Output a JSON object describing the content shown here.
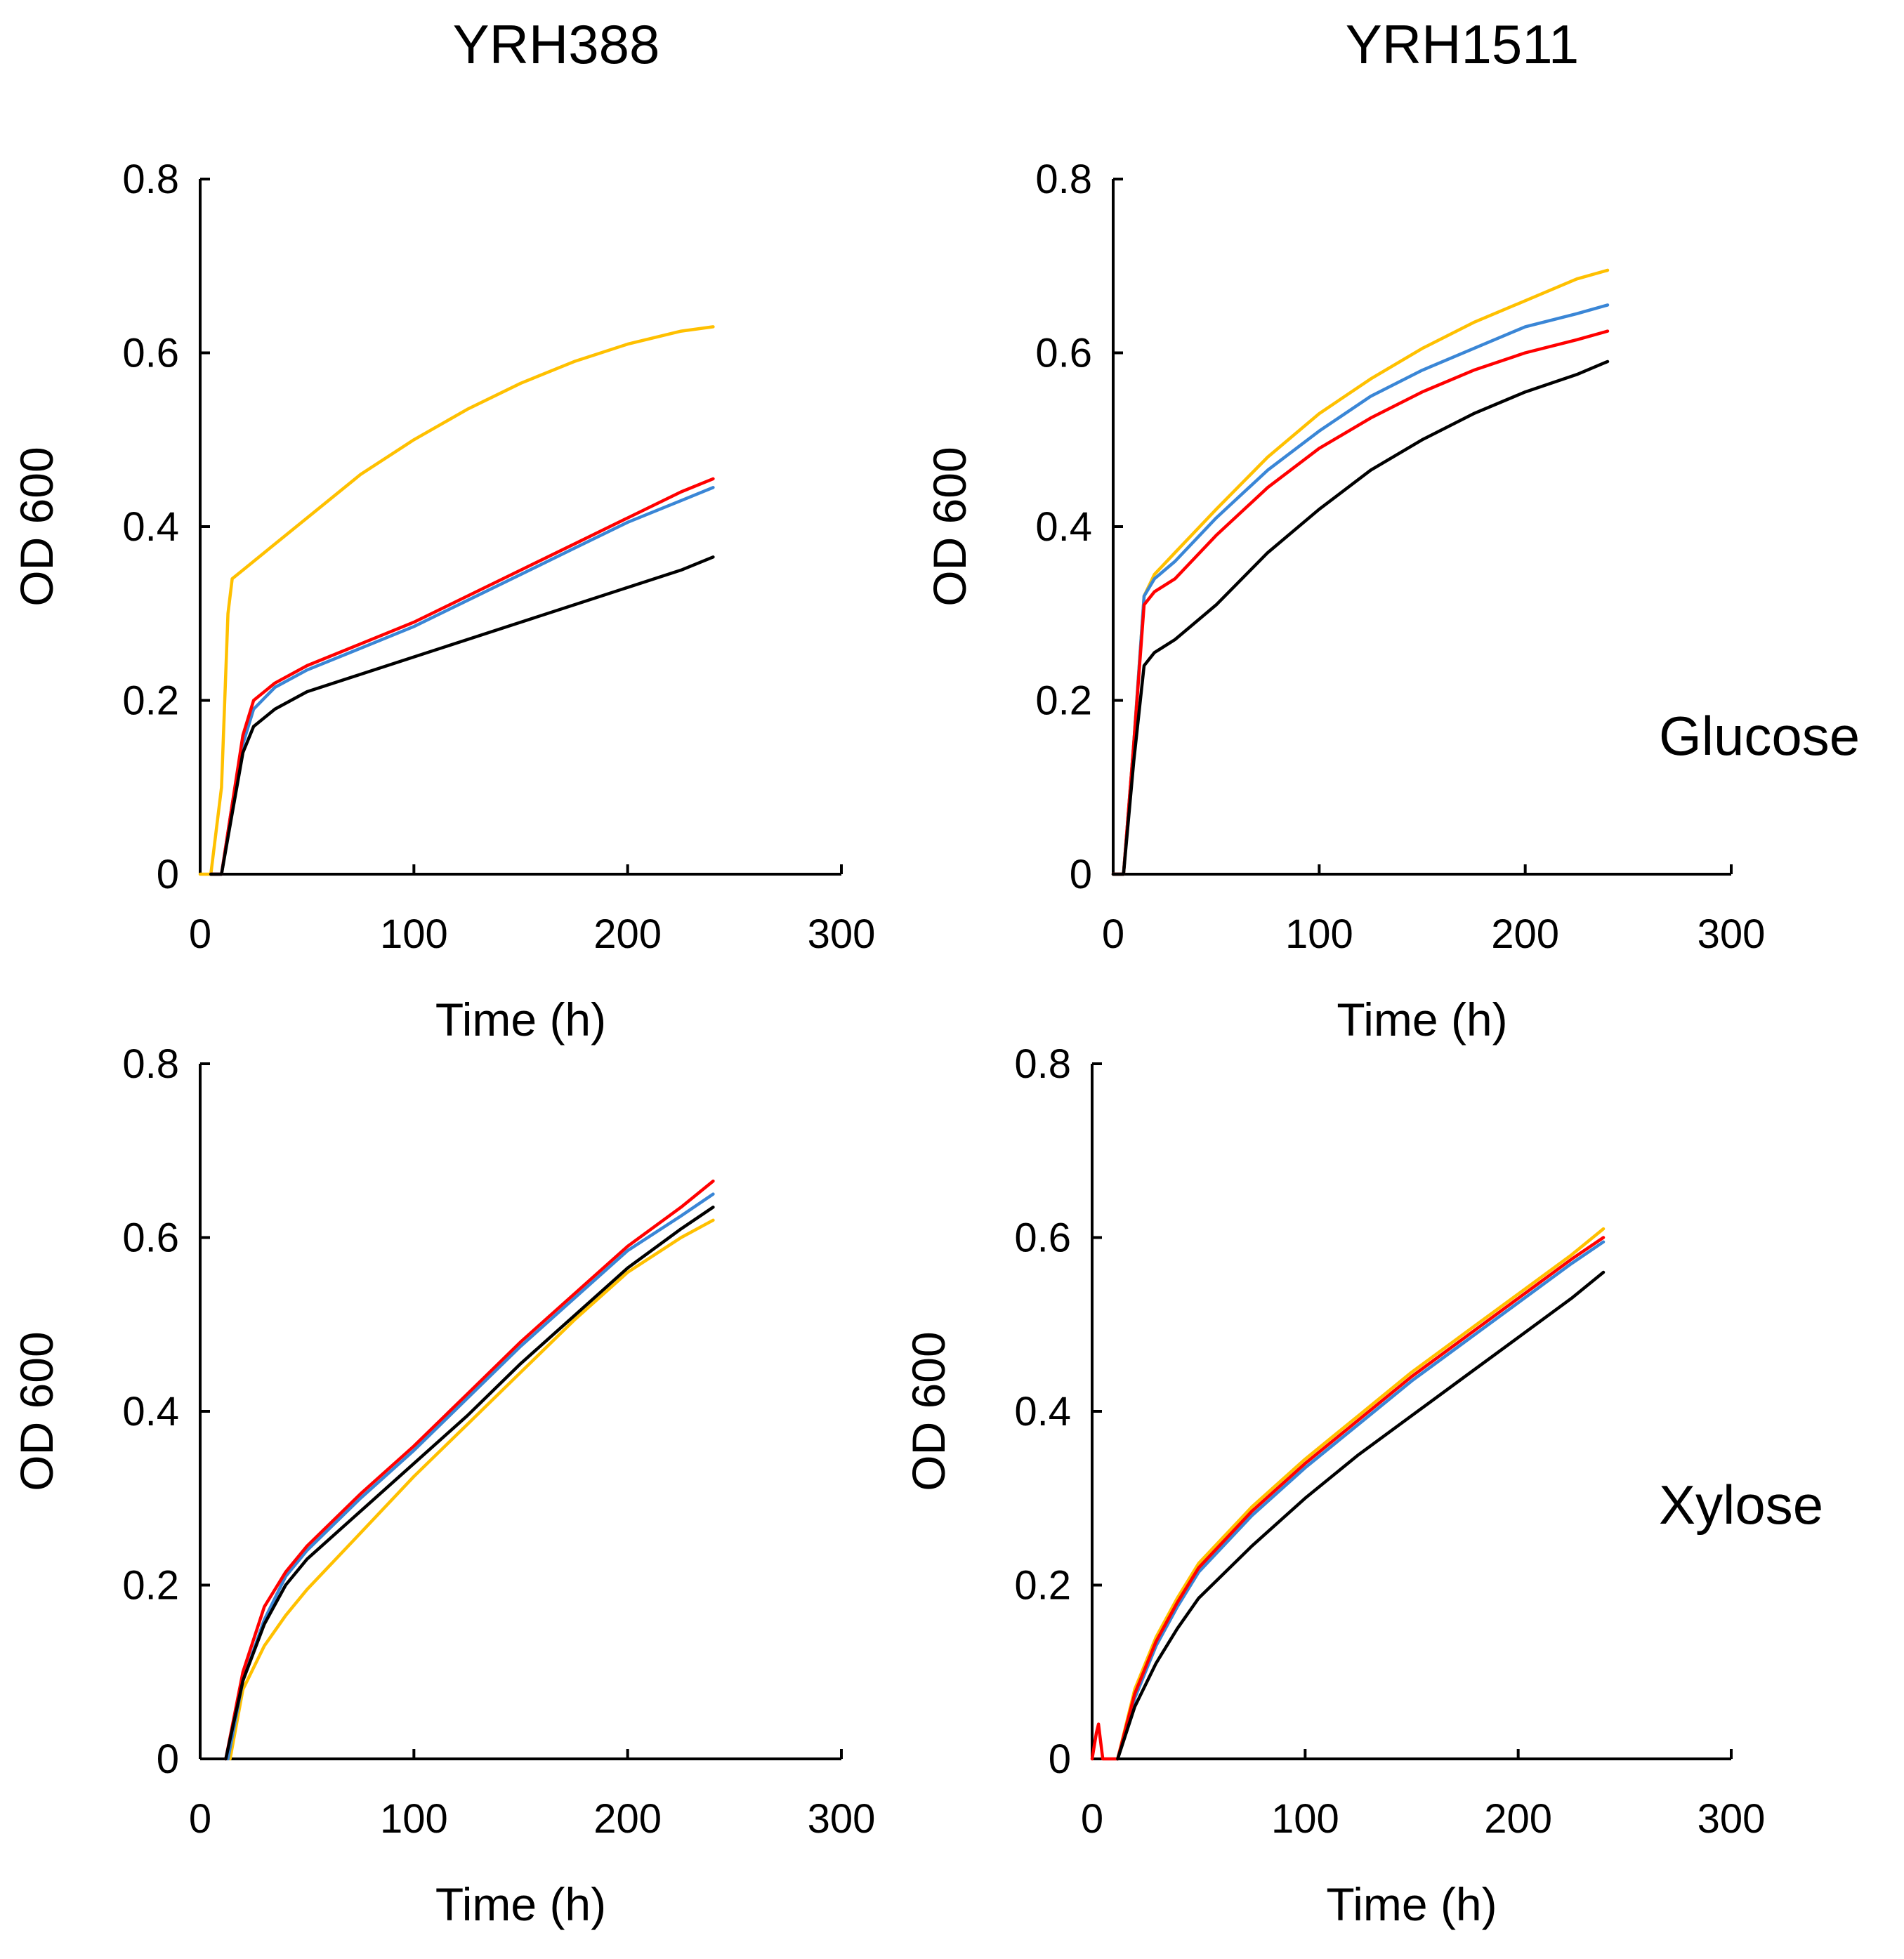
{
  "figure": {
    "column_titles": [
      "YRH388",
      "YRH1511"
    ],
    "row_labels": [
      "Glucose",
      "Xylose"
    ]
  },
  "colors": {
    "yellow": "#FFC000",
    "blue": "#3A86D6",
    "red": "#FF0000",
    "black": "#000000"
  },
  "chart_data": [
    {
      "id": "glucose-yrh388",
      "type": "line",
      "strain": "YRH388",
      "carbon_source": "Glucose",
      "xlabel": "Time (h)",
      "ylabel": "OD 600",
      "xlim": [
        0,
        300
      ],
      "ylim": [
        0,
        0.8
      ],
      "xticks": [
        "0",
        "100",
        "200",
        "300"
      ],
      "yticks": [
        "0",
        "0.2",
        "0.4",
        "0.6",
        "0.8"
      ],
      "series": [
        {
          "color": "yellow",
          "x": [
            0,
            5,
            10,
            13,
            15,
            20,
            30,
            50,
            75,
            100,
            125,
            150,
            175,
            200,
            225,
            240
          ],
          "y": [
            0,
            0,
            0.1,
            0.3,
            0.34,
            0.35,
            0.37,
            0.41,
            0.46,
            0.5,
            0.535,
            0.565,
            0.59,
            0.61,
            0.625,
            0.63
          ]
        },
        {
          "color": "blue",
          "x": [
            5,
            10,
            15,
            20,
            25,
            35,
            50,
            75,
            100,
            125,
            150,
            175,
            200,
            225,
            240
          ],
          "y": [
            0,
            0,
            0.08,
            0.15,
            0.19,
            0.215,
            0.235,
            0.26,
            0.285,
            0.315,
            0.345,
            0.375,
            0.405,
            0.43,
            0.445
          ]
        },
        {
          "color": "red",
          "x": [
            5,
            10,
            15,
            20,
            25,
            35,
            50,
            75,
            100,
            125,
            150,
            175,
            200,
            225,
            240
          ],
          "y": [
            0,
            0,
            0.08,
            0.16,
            0.2,
            0.22,
            0.24,
            0.265,
            0.29,
            0.32,
            0.35,
            0.38,
            0.41,
            0.44,
            0.455
          ]
        },
        {
          "color": "black",
          "x": [
            5,
            10,
            15,
            20,
            25,
            35,
            50,
            75,
            100,
            125,
            150,
            175,
            200,
            225,
            240
          ],
          "y": [
            0,
            0,
            0.07,
            0.14,
            0.17,
            0.19,
            0.21,
            0.23,
            0.25,
            0.27,
            0.29,
            0.31,
            0.33,
            0.35,
            0.365
          ]
        }
      ]
    },
    {
      "id": "glucose-yrh1511",
      "type": "line",
      "strain": "YRH1511",
      "carbon_source": "Glucose",
      "xlabel": "Time (h)",
      "ylabel": "OD 600",
      "xlim": [
        0,
        300
      ],
      "ylim": [
        0,
        0.8
      ],
      "xticks": [
        "0",
        "100",
        "200",
        "300"
      ],
      "yticks": [
        "0",
        "0.2",
        "0.4",
        "0.6",
        "0.8"
      ],
      "series": [
        {
          "color": "yellow",
          "x": [
            0,
            5,
            10,
            15,
            20,
            30,
            50,
            75,
            100,
            125,
            150,
            175,
            200,
            225,
            240
          ],
          "y": [
            0,
            0,
            0.15,
            0.32,
            0.345,
            0.37,
            0.42,
            0.48,
            0.53,
            0.57,
            0.605,
            0.635,
            0.66,
            0.685,
            0.695
          ]
        },
        {
          "color": "blue",
          "x": [
            0,
            5,
            10,
            15,
            20,
            30,
            50,
            75,
            100,
            125,
            150,
            175,
            200,
            225,
            240
          ],
          "y": [
            0,
            0,
            0.15,
            0.32,
            0.34,
            0.36,
            0.41,
            0.465,
            0.51,
            0.55,
            0.58,
            0.605,
            0.63,
            0.645,
            0.655
          ]
        },
        {
          "color": "red",
          "x": [
            0,
            5,
            10,
            15,
            20,
            30,
            50,
            75,
            100,
            125,
            150,
            175,
            200,
            225,
            240
          ],
          "y": [
            0,
            0,
            0.15,
            0.31,
            0.325,
            0.34,
            0.39,
            0.445,
            0.49,
            0.525,
            0.555,
            0.58,
            0.6,
            0.615,
            0.625
          ]
        },
        {
          "color": "black",
          "x": [
            0,
            5,
            10,
            15,
            20,
            30,
            50,
            75,
            100,
            125,
            150,
            175,
            200,
            225,
            240
          ],
          "y": [
            0,
            0,
            0.13,
            0.24,
            0.255,
            0.27,
            0.31,
            0.37,
            0.42,
            0.465,
            0.5,
            0.53,
            0.555,
            0.575,
            0.59
          ]
        }
      ]
    },
    {
      "id": "xylose-yrh388",
      "type": "line",
      "strain": "YRH388",
      "carbon_source": "Xylose",
      "xlabel": "Time (h)",
      "ylabel": "OD 600",
      "xlim": [
        0,
        300
      ],
      "ylim": [
        0,
        0.8
      ],
      "xticks": [
        "0",
        "100",
        "200",
        "300"
      ],
      "yticks": [
        "0",
        "0.2",
        "0.4",
        "0.6",
        "0.8"
      ],
      "series": [
        {
          "color": "yellow",
          "x": [
            14,
            20,
            30,
            40,
            50,
            75,
            100,
            125,
            150,
            175,
            200,
            225,
            240
          ],
          "y": [
            0,
            0.08,
            0.13,
            0.165,
            0.195,
            0.26,
            0.325,
            0.385,
            0.445,
            0.505,
            0.56,
            0.6,
            0.62
          ]
        },
        {
          "color": "blue",
          "x": [
            13,
            20,
            30,
            40,
            50,
            75,
            100,
            125,
            150,
            175,
            200,
            225,
            240
          ],
          "y": [
            0,
            0.09,
            0.16,
            0.21,
            0.24,
            0.3,
            0.355,
            0.415,
            0.475,
            0.53,
            0.585,
            0.625,
            0.65
          ]
        },
        {
          "color": "red",
          "x": [
            12,
            20,
            30,
            40,
            50,
            75,
            100,
            125,
            150,
            175,
            200,
            225,
            240
          ],
          "y": [
            0,
            0.1,
            0.175,
            0.215,
            0.245,
            0.305,
            0.36,
            0.42,
            0.48,
            0.535,
            0.59,
            0.635,
            0.665
          ]
        },
        {
          "color": "black",
          "x": [
            12,
            20,
            30,
            40,
            50,
            75,
            100,
            125,
            150,
            175,
            200,
            225,
            240
          ],
          "y": [
            0,
            0.09,
            0.155,
            0.2,
            0.23,
            0.285,
            0.34,
            0.395,
            0.455,
            0.51,
            0.565,
            0.61,
            0.635
          ]
        }
      ]
    },
    {
      "id": "xylose-yrh1511",
      "type": "line",
      "strain": "YRH1511",
      "carbon_source": "Xylose",
      "xlabel": "Time (h)",
      "ylabel": "OD 600",
      "xlim": [
        0,
        300
      ],
      "ylim": [
        0,
        0.8
      ],
      "xticks": [
        "0",
        "100",
        "200",
        "300"
      ],
      "yticks": [
        "0",
        "0.2",
        "0.4",
        "0.6",
        "0.8"
      ],
      "series": [
        {
          "color": "yellow",
          "x": [
            12,
            20,
            30,
            40,
            50,
            75,
            100,
            125,
            150,
            175,
            200,
            225,
            240
          ],
          "y": [
            0,
            0.08,
            0.14,
            0.185,
            0.225,
            0.29,
            0.345,
            0.395,
            0.445,
            0.49,
            0.535,
            0.58,
            0.61
          ]
        },
        {
          "color": "blue",
          "x": [
            12,
            20,
            30,
            40,
            50,
            75,
            100,
            125,
            150,
            175,
            200,
            225,
            240
          ],
          "y": [
            0,
            0.07,
            0.13,
            0.175,
            0.215,
            0.28,
            0.335,
            0.385,
            0.435,
            0.48,
            0.525,
            0.57,
            0.595
          ]
        },
        {
          "color": "red",
          "x": [
            0,
            2,
            3,
            4,
            5,
            12,
            20,
            30,
            40,
            50,
            75,
            100,
            125,
            150,
            175,
            200,
            225,
            240
          ],
          "y": [
            0,
            0.03,
            0.04,
            0.02,
            0,
            0,
            0.075,
            0.135,
            0.18,
            0.22,
            0.285,
            0.34,
            0.39,
            0.44,
            0.485,
            0.53,
            0.575,
            0.6
          ]
        },
        {
          "color": "black",
          "x": [
            12,
            20,
            30,
            40,
            50,
            75,
            100,
            125,
            150,
            175,
            200,
            225,
            240
          ],
          "y": [
            0,
            0.06,
            0.11,
            0.15,
            0.185,
            0.245,
            0.3,
            0.35,
            0.395,
            0.44,
            0.485,
            0.53,
            0.56
          ]
        }
      ]
    }
  ]
}
